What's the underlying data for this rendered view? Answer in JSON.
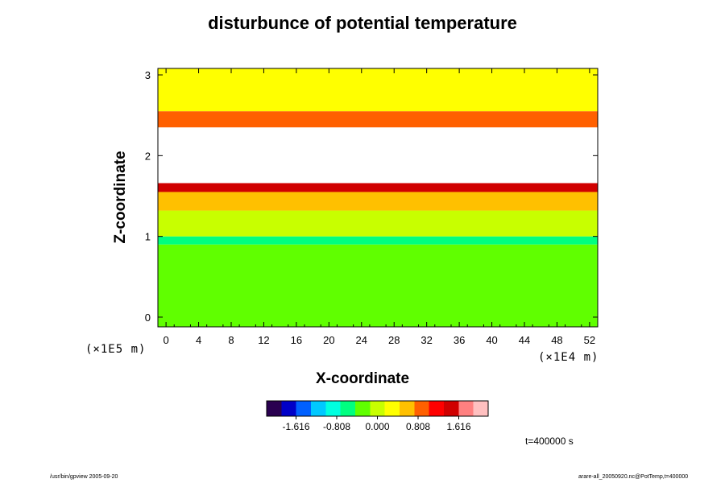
{
  "chart_data": {
    "type": "heatmap",
    "title": "disturbunce of potential temperature",
    "xlabel": "X-coordinate",
    "ylabel": "Z-coordinate",
    "x_unit": "(×1E4 m)",
    "y_unit": "(×1E5 m)",
    "xlim": [
      -1,
      53
    ],
    "ylim": [
      -0.12,
      3.08
    ],
    "x_ticks": [
      "0",
      "4",
      "8",
      "12",
      "16",
      "20",
      "24",
      "28",
      "32",
      "36",
      "40",
      "44",
      "48",
      "52"
    ],
    "y_ticks": [
      "0",
      "1",
      "2",
      "3"
    ],
    "colorbar": {
      "ticks": [
        "-1.616",
        "-0.808",
        "0.000",
        "0.808",
        "1.616"
      ],
      "colors": [
        "#2a0050",
        "#0000c8",
        "#0060ff",
        "#00c8ff",
        "#00ffe0",
        "#00ff80",
        "#60ff00",
        "#c8ff00",
        "#ffff00",
        "#ffc000",
        "#ff6000",
        "#ff0000",
        "#d00000",
        "#ff8080",
        "#ffc0c0"
      ]
    },
    "layers": [
      {
        "z_range": [
          -0.12,
          0.9
        ],
        "level": -0.35
      },
      {
        "z_range": [
          0.9,
          1.0
        ],
        "level": -0.55
      },
      {
        "z_range": [
          1.0,
          1.32
        ],
        "level": 0.1
      },
      {
        "z_range": [
          1.32,
          1.55
        ],
        "level": 0.55
      },
      {
        "z_range": [
          1.55,
          1.66
        ],
        "level": 1.35
      },
      {
        "z_range": [
          1.66,
          2.35
        ],
        "level": null
      },
      {
        "z_range": [
          2.35,
          2.55
        ],
        "level": 0.9
      },
      {
        "z_range": [
          2.55,
          3.08
        ],
        "level": 0.15
      }
    ],
    "time_label": "t=400000 s"
  },
  "footer": {
    "left": "/usr/bin/gpview 2005-09-20",
    "right": "arare-all_20050920.nc@PotTemp,t=400000"
  }
}
